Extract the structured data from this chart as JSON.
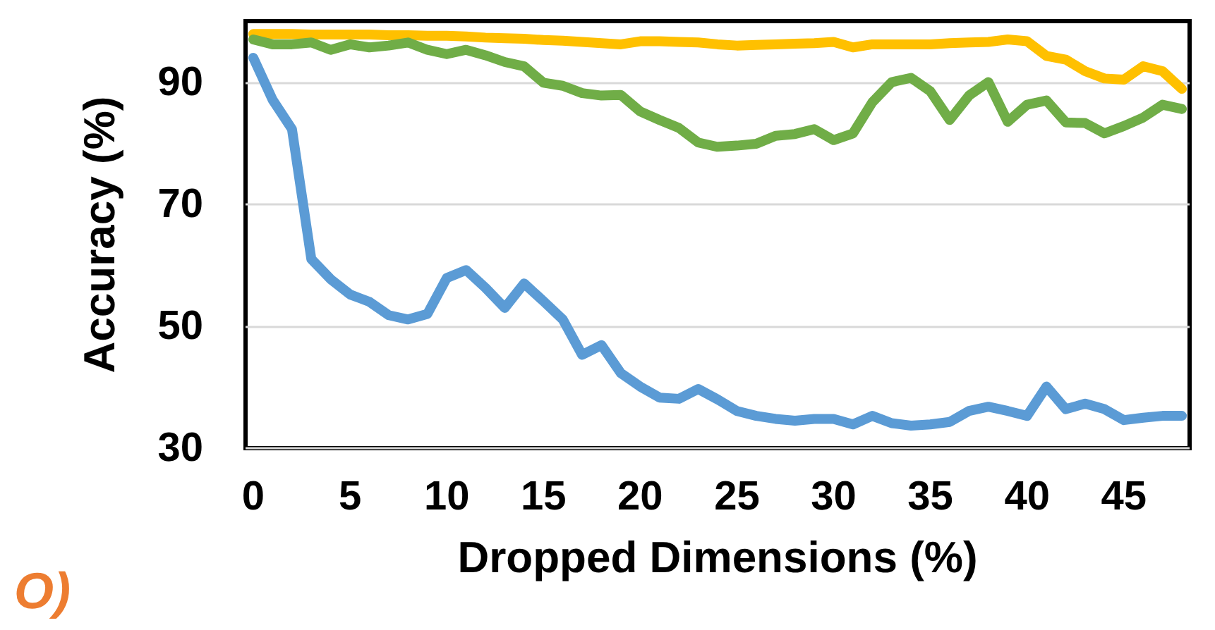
{
  "chart_data": {
    "type": "line",
    "xlabel": "Dropped Dimensions (%)",
    "ylabel": "Accuracy (%)",
    "x": [
      0,
      1,
      2,
      3,
      4,
      5,
      6,
      7,
      8,
      9,
      10,
      11,
      12,
      13,
      14,
      15,
      16,
      17,
      18,
      19,
      20,
      21,
      22,
      23,
      24,
      25,
      26,
      27,
      28,
      29,
      30,
      31,
      32,
      33,
      34,
      35,
      36,
      37,
      38,
      39,
      40,
      41,
      42,
      43,
      44,
      45,
      46,
      47,
      48
    ],
    "series": [
      {
        "color": "#ffc000",
        "values": [
          97.9,
          97.9,
          97.9,
          97.8,
          97.8,
          97.8,
          97.8,
          97.7,
          97.7,
          97.6,
          97.6,
          97.5,
          97.3,
          97.2,
          97.1,
          96.9,
          96.8,
          96.6,
          96.4,
          96.2,
          96.7,
          96.7,
          96.6,
          96.5,
          96.2,
          96.0,
          96.1,
          96.2,
          96.3,
          96.4,
          96.6,
          95.7,
          96.2,
          96.2,
          96.2,
          96.2,
          96.4,
          96.5,
          96.6,
          97.0,
          96.7,
          94.3,
          93.7,
          91.8,
          90.6,
          90.4,
          92.6,
          91.8,
          88.9
        ]
      },
      {
        "color": "#70ad47",
        "values": [
          97.0,
          96.2,
          96.2,
          96.5,
          95.3,
          96.2,
          95.7,
          96.0,
          96.5,
          95.3,
          94.6,
          95.3,
          94.4,
          93.3,
          92.6,
          89.9,
          89.4,
          88.2,
          87.8,
          87.9,
          85.2,
          83.8,
          82.5,
          80.1,
          79.4,
          79.6,
          79.9,
          81.2,
          81.5,
          82.3,
          80.5,
          81.6,
          86.7,
          90.0,
          90.7,
          88.5,
          83.8,
          87.8,
          90.0,
          83.5,
          86.3,
          87.0,
          83.4,
          83.3,
          81.6,
          82.8,
          84.2,
          86.3,
          85.6
        ]
      },
      {
        "color": "#5b9bd5",
        "values": [
          94.0,
          87.1,
          82.3,
          61.0,
          57.7,
          55.2,
          54.0,
          51.8,
          51.1,
          52.0,
          57.9,
          59.2,
          56.3,
          53.0,
          57.0,
          54.1,
          51.1,
          45.3,
          46.9,
          42.3,
          40.1,
          38.3,
          38.1,
          39.7,
          38.0,
          36.1,
          35.3,
          34.8,
          34.5,
          34.8,
          34.8,
          33.9,
          35.3,
          34.1,
          33.7,
          33.9,
          34.3,
          36.1,
          36.8,
          36.1,
          35.3,
          40.1,
          36.4,
          37.3,
          36.4,
          34.6,
          35.0,
          35.3,
          35.3
        ]
      }
    ],
    "xlim": [
      -0.4,
      48.4
    ],
    "xticks": [
      0,
      5,
      10,
      15,
      20,
      25,
      30,
      35,
      40,
      45
    ],
    "ylim": [
      30,
      100
    ],
    "yticks": [
      30,
      50,
      70,
      90
    ],
    "grid": "y",
    "marker": "none",
    "line_style": "solid",
    "annotations": [
      "O)"
    ]
  }
}
